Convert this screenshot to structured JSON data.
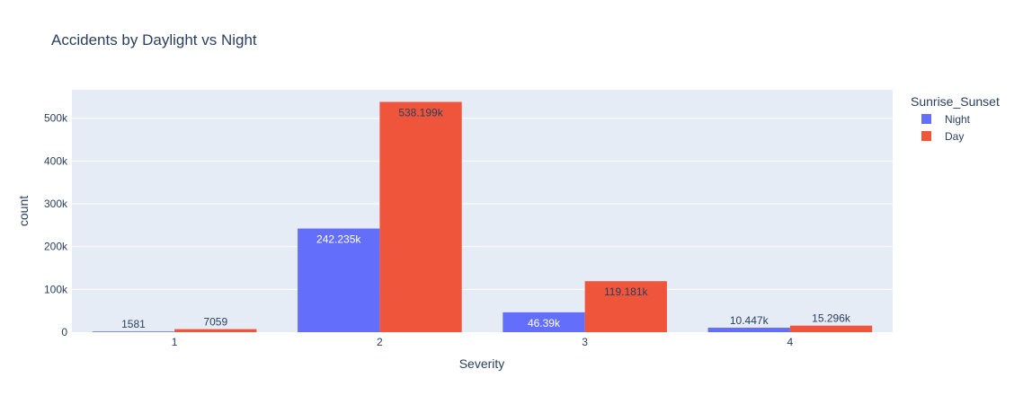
{
  "chart_data": {
    "type": "bar",
    "title": "Accidents by Daylight vs Night",
    "xlabel": "Severity",
    "ylabel": "count",
    "categories": [
      "1",
      "2",
      "3",
      "4"
    ],
    "series": [
      {
        "name": "Night",
        "color": "#636efa",
        "values": [
          1581,
          242235,
          46390,
          10447
        ],
        "labels": [
          "1581",
          "242.235k",
          "46.39k",
          "10.447k"
        ]
      },
      {
        "name": "Day",
        "color": "#ef553b",
        "values": [
          7059,
          538199,
          119181,
          15296
        ],
        "labels": [
          "7059",
          "538.199k",
          "119.181k",
          "15.296k"
        ]
      }
    ],
    "ylim": [
      0,
      566525
    ],
    "yticks": [
      0,
      100000,
      200000,
      300000,
      400000,
      500000
    ],
    "ytick_labels": [
      "0",
      "100k",
      "200k",
      "300k",
      "400k",
      "500k"
    ],
    "legend_title": "Sunrise_Sunset",
    "legend_position": "top-right",
    "grid": true,
    "plot_bgcolor": "#e5ecf6",
    "gridcolor": "#ffffff"
  }
}
